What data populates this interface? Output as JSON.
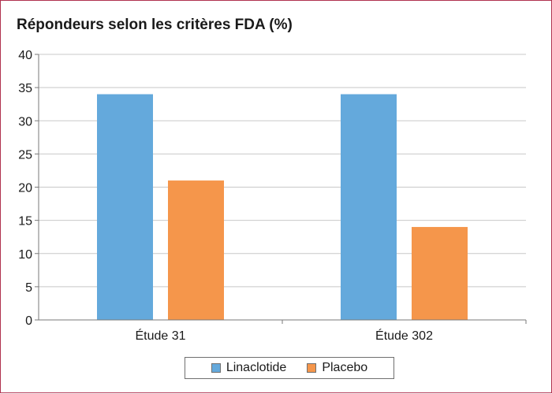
{
  "chart_data": {
    "type": "bar",
    "title": "Répondeurs selon les critères FDA (%)",
    "xlabel": "",
    "ylabel": "",
    "categories": [
      "Étude 31",
      "Étude 302"
    ],
    "series": [
      {
        "name": "Linaclotide",
        "values": [
          34,
          34
        ],
        "color": "#64a9dc"
      },
      {
        "name": "Placebo",
        "values": [
          21,
          14
        ],
        "color": "#f5964b"
      }
    ],
    "ylim": [
      0,
      40
    ],
    "yticks": [
      "0",
      "5",
      "10",
      "15",
      "20",
      "25",
      "30",
      "35",
      "40"
    ],
    "grid": true,
    "legend_position": "bottom"
  }
}
